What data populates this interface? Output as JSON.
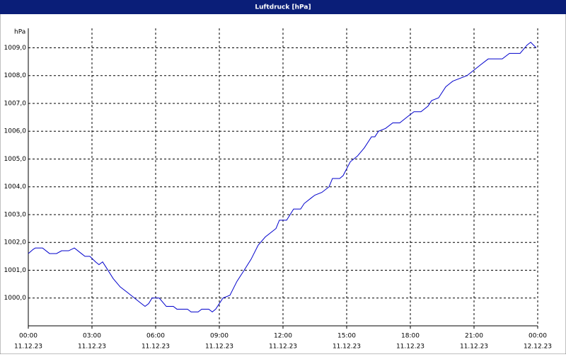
{
  "chart_data": {
    "type": "line",
    "title": "Luftdruck [hPa]",
    "y_label": "hPa",
    "color": "#0000cc",
    "grid": true,
    "x": [
      0,
      0.23,
      0.33,
      0.67,
      1,
      1.33,
      1.57,
      1.9,
      2.17,
      2.5,
      2.67,
      2.9,
      3.17,
      3.33,
      3.5,
      3.67,
      4,
      4.33,
      4.67,
      5,
      5.33,
      5.5,
      5.67,
      5.83,
      6.17,
      6.5,
      6.83,
      7,
      7.5,
      7.67,
      8,
      8.17,
      8.5,
      8.67,
      8.83,
      9.17,
      9.5,
      9.83,
      10.17,
      10.5,
      10.83,
      11.17,
      11.67,
      11.83,
      12.17,
      12.5,
      12.83,
      13,
      13.33,
      13.5,
      13.83,
      14.17,
      14.33,
      14.67,
      14.83,
      15.17,
      15.5,
      15.83,
      16.17,
      16.33,
      16.5,
      16.83,
      17.17,
      17.5,
      17.83,
      18.17,
      18.5,
      18.83,
      19,
      19.33,
      19.67,
      20,
      20.33,
      20.67,
      21,
      21.33,
      21.67,
      22.33,
      22.67,
      23.17,
      23.5,
      23.67,
      23.93
    ],
    "values": [
      1001.6,
      1001.75,
      1001.8,
      1001.8,
      1001.6,
      1001.6,
      1001.7,
      1001.7,
      1001.8,
      1001.6,
      1001.5,
      1001.5,
      1001.3,
      1001.2,
      1001.3,
      1001.1,
      1000.7,
      1000.4,
      1000.2,
      1000.0,
      999.8,
      999.7,
      999.8,
      1000.0,
      1000.0,
      999.7,
      999.7,
      999.6,
      999.6,
      999.5,
      999.5,
      999.6,
      999.6,
      999.5,
      999.6,
      1000.0,
      1000.1,
      1000.6,
      1001.0,
      1001.4,
      1001.9,
      1002.2,
      1002.5,
      1002.8,
      1002.8,
      1003.2,
      1003.2,
      1003.4,
      1003.6,
      1003.7,
      1003.8,
      1004.0,
      1004.3,
      1004.3,
      1004.4,
      1004.9,
      1005.1,
      1005.4,
      1005.8,
      1005.8,
      1006.0,
      1006.1,
      1006.3,
      1006.3,
      1006.5,
      1006.7,
      1006.7,
      1006.9,
      1007.1,
      1007.2,
      1007.6,
      1007.8,
      1007.9,
      1008.0,
      1008.2,
      1008.4,
      1008.6,
      1008.6,
      1008.8,
      1008.8,
      1009.1,
      1009.2,
      1009.0
    ],
    "xlim": [
      0,
      24
    ],
    "xticks": [
      {
        "value": 0,
        "label": "00:00"
      },
      {
        "value": 3,
        "label": "03:00"
      },
      {
        "value": 6,
        "label": "06:00"
      },
      {
        "value": 9,
        "label": "09:00"
      },
      {
        "value": 12,
        "label": "12:00"
      },
      {
        "value": 15,
        "label": "15:00"
      },
      {
        "value": 18,
        "label": "18:00"
      },
      {
        "value": 21,
        "label": "21:00"
      },
      {
        "value": 24,
        "label": "00:00"
      }
    ],
    "xtick_dates": [
      "11.12.23",
      "11.12.23",
      "11.12.23",
      "11.12.23",
      "11.12.23",
      "11.12.23",
      "11.12.23",
      "11.12.23",
      "12.12.23"
    ],
    "ylim": [
      999.0,
      1009.7
    ],
    "yticks": [
      {
        "value": 1000,
        "label": "1000,0"
      },
      {
        "value": 1001,
        "label": "1001,0"
      },
      {
        "value": 1002,
        "label": "1002,0"
      },
      {
        "value": 1003,
        "label": "1003,0"
      },
      {
        "value": 1004,
        "label": "1004,0"
      },
      {
        "value": 1005,
        "label": "1005,0"
      },
      {
        "value": 1006,
        "label": "1006,0"
      },
      {
        "value": 1007,
        "label": "1007,0"
      },
      {
        "value": 1008,
        "label": "1008,0"
      },
      {
        "value": 1009,
        "label": "1009,0"
      }
    ]
  }
}
